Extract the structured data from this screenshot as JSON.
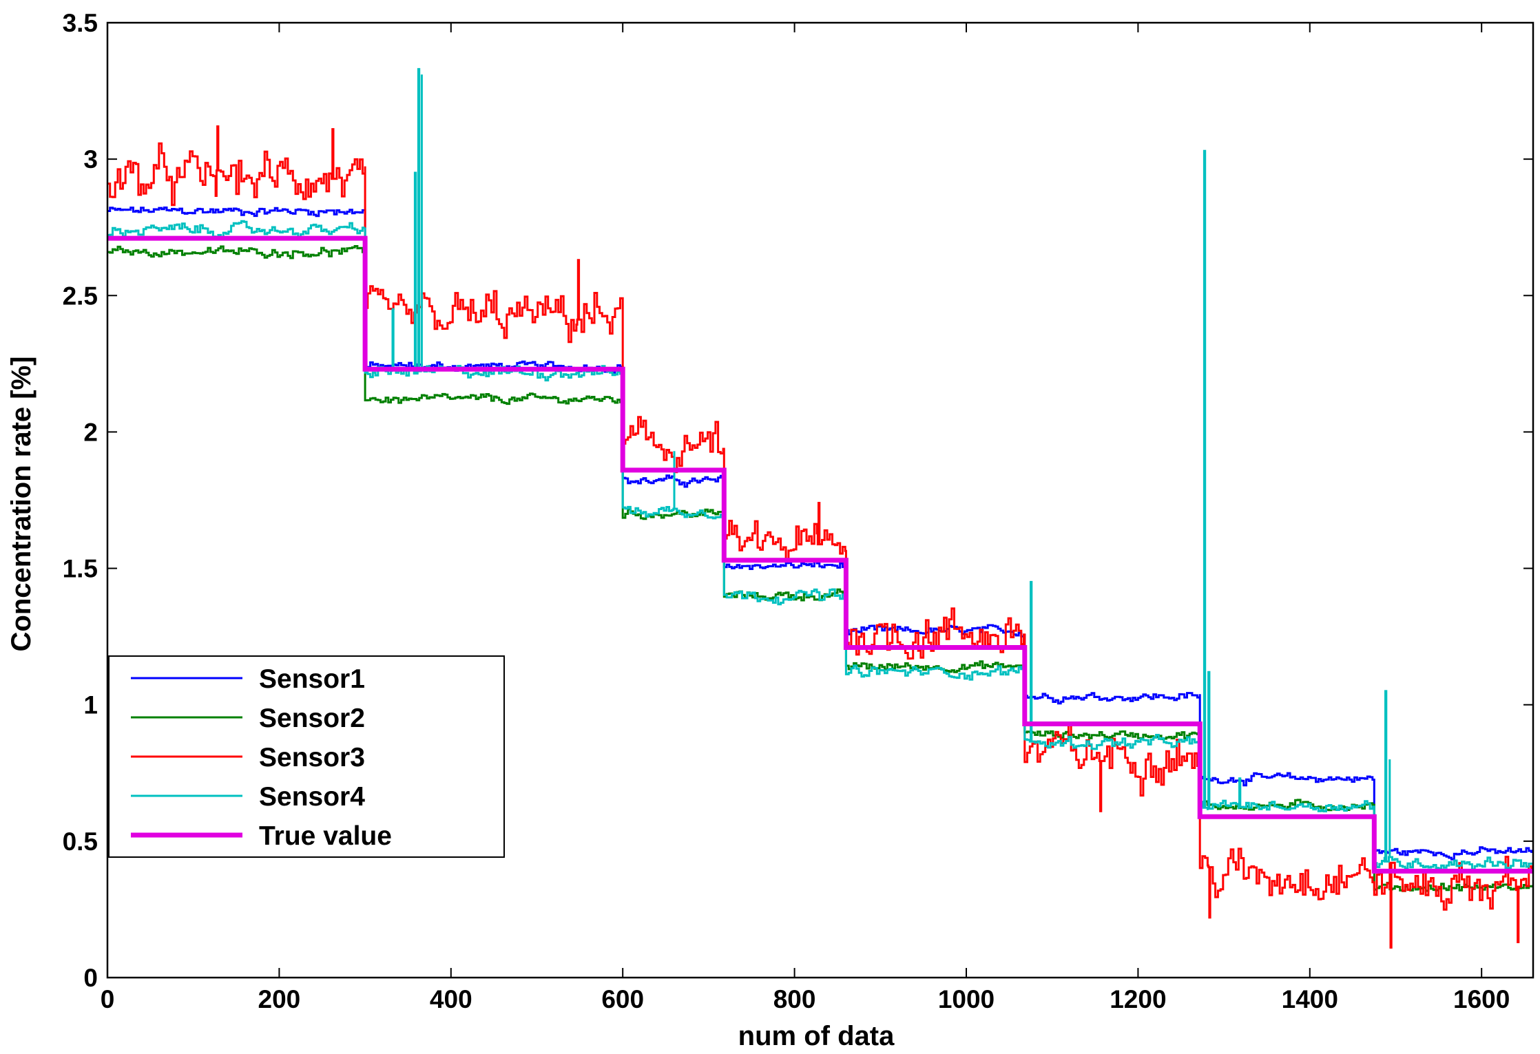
{
  "chart_data": {
    "type": "line",
    "title": "",
    "xlabel": "num of data",
    "ylabel": "Concentration rate [%]",
    "xlim": [
      0,
      1660
    ],
    "ylim": [
      0,
      3.5
    ],
    "xticks": [
      0,
      200,
      400,
      600,
      800,
      1000,
      1200,
      1400,
      1600
    ],
    "yticks": [
      0,
      0.5,
      1,
      1.5,
      2,
      2.5,
      3,
      3.5
    ],
    "xtick_labels": [
      "0",
      "200",
      "400",
      "600",
      "800",
      "1000",
      "1200",
      "1400",
      "1600"
    ],
    "ytick_labels": [
      "0",
      "0.5",
      "1",
      "1.5",
      "2",
      "2.5",
      "3",
      "3.5"
    ],
    "grid": false,
    "legend_position": "bottom-left",
    "segment_boundaries": [
      0,
      300,
      600,
      718,
      860,
      1068,
      1272,
      1475,
      1660
    ],
    "series": [
      {
        "name": "Sensor1",
        "color": "#0000ff",
        "line_width": 3,
        "levels": [
          2.81,
          2.24,
          1.82,
          1.51,
          1.27,
          1.03,
          0.73,
          0.46
        ],
        "noise": 0.015,
        "spikes": []
      },
      {
        "name": "Sensor2",
        "color": "#008000",
        "line_width": 3,
        "levels": [
          2.66,
          2.12,
          1.7,
          1.4,
          1.14,
          0.89,
          0.63,
          0.33
        ],
        "noise": 0.015,
        "spikes": []
      },
      {
        "name": "Sensor3",
        "color": "#ff0000",
        "line_width": 3,
        "levels": [
          2.93,
          2.42,
          1.95,
          1.58,
          1.26,
          0.82,
          0.38,
          0.34
        ],
        "noise": 0.08,
        "spikes": [
          {
            "x": 128,
            "y": 3.12
          },
          {
            "x": 262,
            "y": 3.11
          },
          {
            "x": 548,
            "y": 2.63
          },
          {
            "x": 828,
            "y": 1.74
          },
          {
            "x": 1156,
            "y": 0.61
          },
          {
            "x": 1283,
            "y": 0.22
          },
          {
            "x": 1494,
            "y": 0.11
          },
          {
            "x": 1642,
            "y": 0.13
          }
        ]
      },
      {
        "name": "Sensor4",
        "color": "#00c0c0",
        "line_width": 3,
        "levels": [
          2.74,
          2.22,
          1.71,
          1.4,
          1.12,
          0.86,
          0.63,
          0.42
        ],
        "noise": 0.02,
        "spikes": [
          {
            "x": 332,
            "y": 2.45
          },
          {
            "x": 358,
            "y": 2.95
          },
          {
            "x": 362,
            "y": 3.33
          },
          {
            "x": 366,
            "y": 3.31
          },
          {
            "x": 660,
            "y": 1.93
          },
          {
            "x": 1075,
            "y": 1.45
          },
          {
            "x": 1277,
            "y": 3.03
          },
          {
            "x": 1282,
            "y": 1.12
          },
          {
            "x": 1318,
            "y": 0.73
          },
          {
            "x": 1488,
            "y": 1.05
          },
          {
            "x": 1493,
            "y": 0.8
          }
        ]
      },
      {
        "name": "True value",
        "color": "#e000e0",
        "line_width": 7,
        "levels": [
          2.71,
          2.23,
          1.86,
          1.53,
          1.21,
          0.93,
          0.59,
          0.39
        ],
        "noise": 0,
        "spikes": []
      }
    ]
  }
}
